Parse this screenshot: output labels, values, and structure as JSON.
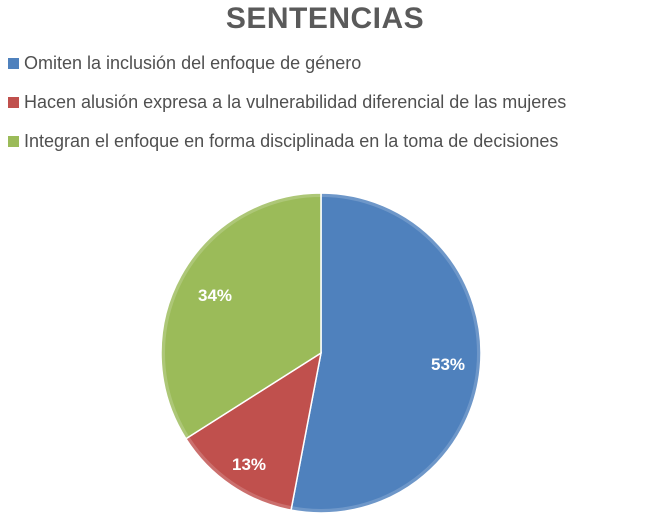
{
  "chart_data": {
    "type": "pie",
    "title": "SENTENCIAS",
    "categories": [
      "Omiten la inclusión del enfoque de género",
      "Hacen alusión expresa a la vulnerabilidad diferencial de las mujeres",
      "Integran el enfoque en forma disciplinada en la toma de decisiones"
    ],
    "values": [
      53,
      13,
      34
    ],
    "data_labels": [
      "53%",
      "13%",
      "34%"
    ],
    "colors": [
      "#4f81bd",
      "#c0504d",
      "#9bbb59"
    ],
    "legend_position": "top"
  }
}
